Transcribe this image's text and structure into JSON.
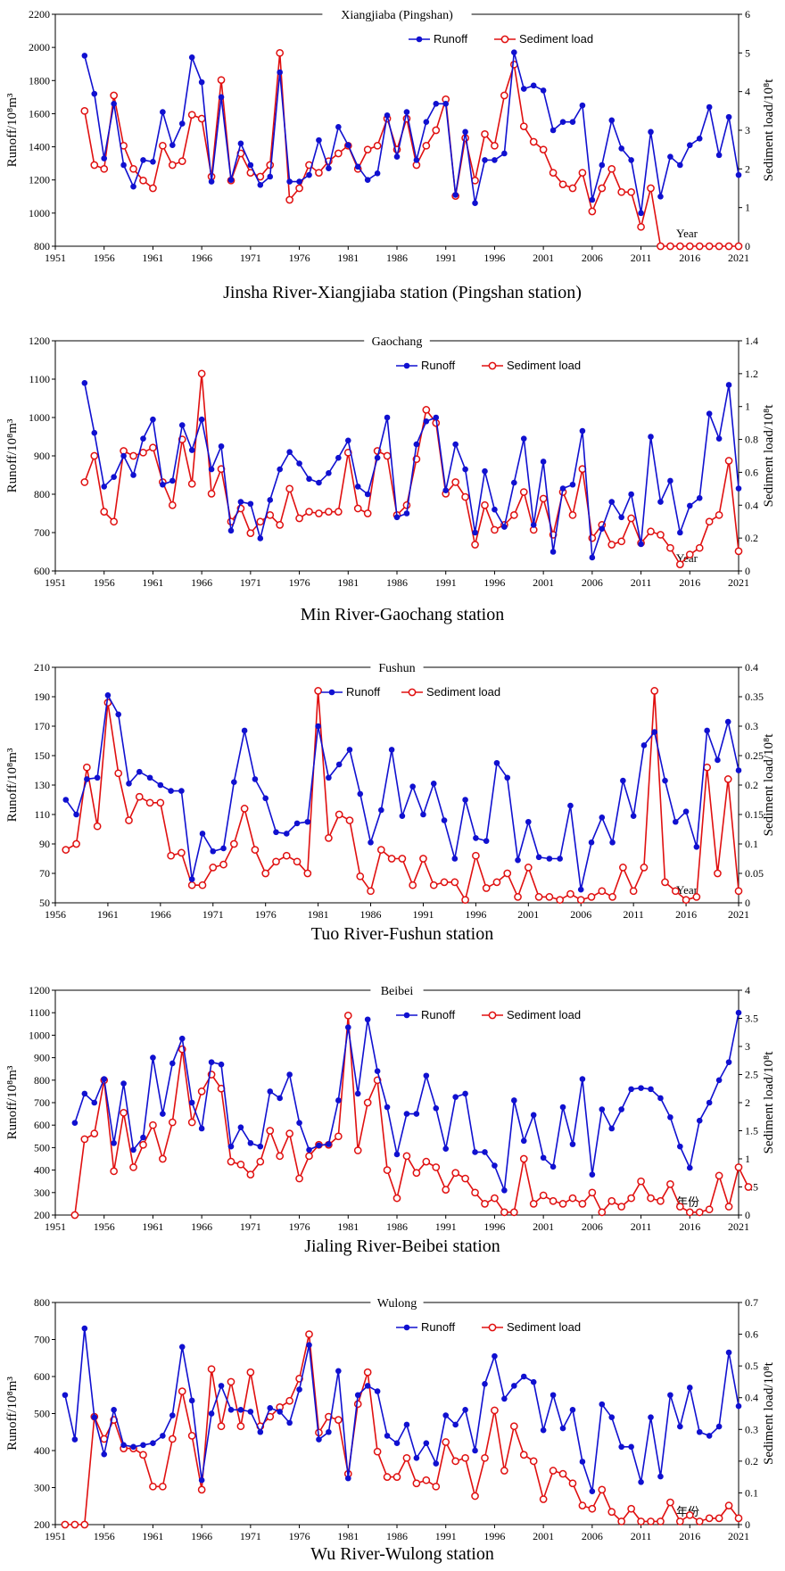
{
  "colors": {
    "runoff": "#1010d0",
    "sediment": "#e01010"
  },
  "chart_data": [
    {
      "type": "line",
      "title": "Xiangjiaba (Pingshan)",
      "caption": "Jinsha River-Xiangjiaba station (Pingshan station)",
      "ylabel": "Runoff/10⁸m³",
      "y2label": "Sediment load/10⁸t",
      "xnote": "Year",
      "xlim": [
        1951,
        2021
      ],
      "xticks": [
        "1951",
        "1956",
        "1961",
        "1966",
        "1971",
        "1976",
        "1981",
        "1986",
        "1991",
        "1996",
        "2001",
        "2006",
        "2011",
        "2016",
        "2021"
      ],
      "ylim": [
        800,
        2200
      ],
      "yticks": [
        "800",
        "1000",
        "1200",
        "1400",
        "1600",
        "1800",
        "2000",
        "2200"
      ],
      "y2lim": [
        0,
        6
      ],
      "y2ticks": [
        "0",
        "1",
        "2",
        "3",
        "4",
        "5",
        "6"
      ],
      "legend": [
        "Runoff",
        "Sediment load"
      ],
      "x_start": 1954,
      "series": [
        {
          "name": "Runoff",
          "axis": "left",
          "values": [
            1950,
            1720,
            1330,
            1660,
            1290,
            1160,
            1320,
            1310,
            1610,
            1410,
            1540,
            1940,
            1790,
            1190,
            1700,
            1200,
            1420,
            1290,
            1170,
            1220,
            1850,
            1190,
            1190,
            1230,
            1440,
            1270,
            1520,
            1410,
            1280,
            1200,
            1240,
            1590,
            1340,
            1610,
            1320,
            1550,
            1660,
            1660,
            1110,
            1490,
            1060,
            1320,
            1320,
            1360,
            1970,
            1750,
            1770,
            1740,
            1500,
            1550,
            1550,
            1650,
            1080,
            1290,
            1560,
            1390,
            1320,
            1000,
            1490,
            1100,
            1340,
            1290,
            1410,
            1450,
            1640,
            1350,
            1580,
            1230
          ]
        },
        {
          "name": "Sediment load",
          "axis": "right",
          "values": [
            3.5,
            2.1,
            2.0,
            3.9,
            2.6,
            2.0,
            1.7,
            1.5,
            2.6,
            2.1,
            2.2,
            3.4,
            3.3,
            1.8,
            4.3,
            1.7,
            2.4,
            1.9,
            1.8,
            2.1,
            5.0,
            1.2,
            1.5,
            2.1,
            1.9,
            2.2,
            2.4,
            2.6,
            2.0,
            2.5,
            2.6,
            3.3,
            2.5,
            3.3,
            2.1,
            2.6,
            3.0,
            3.8,
            1.3,
            2.8,
            1.7,
            2.9,
            2.6,
            3.9,
            4.7,
            3.1,
            2.7,
            2.5,
            1.9,
            1.6,
            1.5,
            1.9,
            0.9,
            1.5,
            2.0,
            1.4,
            1.4,
            0.5,
            1.5,
            0,
            0,
            0,
            0,
            0,
            0,
            0,
            0,
            0
          ]
        }
      ]
    },
    {
      "type": "line",
      "title": "Gaochang",
      "caption": "Min River-Gaochang station",
      "ylabel": "Runoff/10⁸m³",
      "y2label": "Sediment load/10⁸t",
      "xnote": "Year",
      "xlim": [
        1951,
        2021
      ],
      "xticks": [
        "1951",
        "1956",
        "1961",
        "1966",
        "1971",
        "1976",
        "1981",
        "1986",
        "1991",
        "1996",
        "2001",
        "2006",
        "2011",
        "2016",
        "2021"
      ],
      "ylim": [
        600,
        1200
      ],
      "yticks": [
        "600",
        "700",
        "800",
        "900",
        "1000",
        "1100",
        "1200"
      ],
      "y2lim": [
        0,
        1.4
      ],
      "y2ticks": [
        "0",
        "0.2",
        "0.4",
        "0.6",
        "0.8",
        "1",
        "1.2",
        "1.4"
      ],
      "legend": [
        "Runoff",
        "Sediment load"
      ],
      "x_start": 1954,
      "series": [
        {
          "name": "Runoff",
          "axis": "left",
          "values": [
            1090,
            960,
            820,
            845,
            900,
            850,
            945,
            995,
            825,
            835,
            980,
            915,
            995,
            865,
            925,
            705,
            780,
            775,
            685,
            785,
            865,
            910,
            880,
            840,
            830,
            855,
            895,
            940,
            820,
            800,
            895,
            1000,
            740,
            750,
            930,
            990,
            1000,
            810,
            930,
            865,
            700,
            860,
            760,
            715,
            830,
            945,
            720,
            885,
            650,
            815,
            825,
            965,
            635,
            710,
            780,
            740,
            800,
            670,
            950,
            780,
            835,
            700,
            770,
            790,
            1010,
            945,
            1085,
            815
          ]
        },
        {
          "name": "Sediment load",
          "axis": "right",
          "values": [
            0.54,
            0.7,
            0.36,
            0.3,
            0.73,
            0.7,
            0.72,
            0.75,
            0.54,
            0.4,
            0.8,
            0.53,
            1.2,
            0.47,
            0.62,
            0.3,
            0.38,
            0.23,
            0.3,
            0.34,
            0.28,
            0.5,
            0.32,
            0.36,
            0.35,
            0.36,
            0.36,
            0.72,
            0.38,
            0.35,
            0.73,
            0.7,
            0.34,
            0.4,
            0.68,
            0.98,
            0.9,
            0.47,
            0.54,
            0.45,
            0.16,
            0.4,
            0.25,
            0.28,
            0.34,
            0.48,
            0.25,
            0.44,
            0.22,
            0.48,
            0.34,
            0.62,
            0.2,
            0.28,
            0.16,
            0.18,
            0.32,
            0.17,
            0.24,
            0.22,
            0.14,
            0.04,
            0.1,
            0.14,
            0.3,
            0.34,
            0.67,
            0.12
          ]
        }
      ]
    },
    {
      "type": "line",
      "title": "Fushun",
      "caption": "Tuo River-Fushun station",
      "ylabel": "Runoff/10⁸m³",
      "y2label": "Sediment load/10⁸t",
      "xnote": "Year",
      "xlim": [
        1956,
        2021
      ],
      "xticks": [
        "1956",
        "1961",
        "1966",
        "1971",
        "1976",
        "1981",
        "1986",
        "1991",
        "1996",
        "2001",
        "2006",
        "2011",
        "2016",
        "2021"
      ],
      "ylim": [
        50,
        210
      ],
      "yticks": [
        "50",
        "70",
        "90",
        "110",
        "130",
        "150",
        "170",
        "190",
        "210"
      ],
      "y2lim": [
        0,
        0.4
      ],
      "y2ticks": [
        "0",
        "0.05",
        "0.1",
        "0.15",
        "0.2",
        "0.25",
        "0.3",
        "0.35",
        "0.4"
      ],
      "legend": [
        "Runoff",
        "Sediment load"
      ],
      "x_start": 1957,
      "series": [
        {
          "name": "Runoff",
          "axis": "left",
          "values": [
            120,
            110,
            134,
            135,
            191,
            178,
            131,
            139,
            135,
            130,
            126,
            126,
            66,
            97,
            85,
            87,
            132,
            167,
            134,
            121,
            98,
            97,
            104,
            105,
            170,
            135,
            144,
            154,
            124,
            91,
            113,
            154,
            109,
            129,
            110,
            131,
            106,
            80,
            120,
            94,
            92,
            145,
            135,
            79,
            105,
            81,
            80,
            80,
            116,
            59,
            91,
            108,
            91,
            133,
            109,
            157,
            166,
            133,
            105,
            112,
            88,
            167,
            147,
            173,
            140
          ]
        },
        {
          "name": "Sediment load",
          "axis": "right",
          "values": [
            0.09,
            0.1,
            0.23,
            0.13,
            0.34,
            0.22,
            0.14,
            0.18,
            0.17,
            0.17,
            0.08,
            0.085,
            0.03,
            0.03,
            0.06,
            0.065,
            0.1,
            0.16,
            0.09,
            0.05,
            0.07,
            0.08,
            0.07,
            0.05,
            0.36,
            0.11,
            0.15,
            0.14,
            0.045,
            0.02,
            0.09,
            0.075,
            0.075,
            0.03,
            0.075,
            0.03,
            0.035,
            0.035,
            0.005,
            0.08,
            0.025,
            0.035,
            0.05,
            0.01,
            0.06,
            0.01,
            0.01,
            0.005,
            0.015,
            0.005,
            0.01,
            0.02,
            0.01,
            0.06,
            0.02,
            0.06,
            0.36,
            0.035,
            0.02,
            0.005,
            0.01,
            0.23,
            0.05,
            0.21,
            0.02
          ]
        }
      ]
    },
    {
      "type": "line",
      "title": "Beibei",
      "caption": "Jialing River-Beibei station",
      "ylabel": "Runoff/10⁸m³",
      "y2label": "Sediment load/10⁸t",
      "xnote": "年份",
      "xlim": [
        1951,
        2021
      ],
      "xticks": [
        "1951",
        "1956",
        "1961",
        "1966",
        "1971",
        "1976",
        "1981",
        "1986",
        "1991",
        "1996",
        "2001",
        "2006",
        "2011",
        "2016",
        "2021"
      ],
      "ylim": [
        200,
        1200
      ],
      "yticks": [
        "200",
        "300",
        "400",
        "500",
        "600",
        "700",
        "800",
        "900",
        "1000",
        "1100",
        "1200"
      ],
      "y2lim": [
        0,
        4
      ],
      "y2ticks": [
        "0",
        "0.5",
        "1",
        "1.5",
        "2",
        "2.5",
        "3",
        "3.5",
        "4"
      ],
      "legend": [
        "Runoff",
        "Sediment load"
      ],
      "x_start": 1953,
      "series": [
        {
          "name": "Runoff",
          "axis": "left",
          "values": [
            610,
            740,
            700,
            805,
            520,
            785,
            490,
            545,
            900,
            650,
            875,
            985,
            700,
            585,
            880,
            870,
            505,
            590,
            520,
            505,
            750,
            720,
            825,
            610,
            490,
            510,
            515,
            710,
            1035,
            740,
            1070,
            840,
            680,
            470,
            650,
            650,
            820,
            675,
            495,
            725,
            740,
            480,
            480,
            420,
            310,
            710,
            530,
            645,
            455,
            415,
            680,
            515,
            805,
            380,
            670,
            585,
            670,
            760,
            765,
            760,
            720,
            635,
            505,
            410,
            620,
            700,
            800,
            880,
            1100
          ]
        },
        {
          "name": "Sediment load",
          "axis": "right",
          "values": [
            0,
            1.35,
            1.45,
            2.4,
            0.78,
            1.82,
            0.85,
            1.25,
            1.6,
            1.0,
            1.65,
            2.95,
            1.65,
            2.2,
            2.5,
            2.25,
            0.95,
            0.9,
            0.72,
            0.95,
            1.5,
            1.05,
            1.45,
            0.65,
            1.05,
            1.25,
            1.25,
            1.4,
            3.55,
            1.15,
            2.0,
            2.4,
            0.8,
            0.3,
            1.05,
            0.75,
            0.95,
            0.85,
            0.45,
            0.75,
            0.65,
            0.4,
            0.2,
            0.3,
            0.05,
            0.05,
            1.0,
            0.2,
            0.35,
            0.25,
            0.2,
            0.3,
            0.2,
            0.4,
            0.05,
            0.25,
            0.15,
            0.3,
            0.6,
            0.3,
            0.25,
            0.55,
            0.15,
            0.05,
            0.05,
            0.1,
            0.7,
            0.15,
            0.85,
            0.5
          ]
        }
      ]
    },
    {
      "type": "line",
      "title": "Wulong",
      "caption": "Wu River-Wulong station",
      "ylabel": "Runoff/10⁸m³",
      "y2label": "Sediment load/10⁸t",
      "xnote": "年份",
      "xlim": [
        1951,
        2021
      ],
      "xticks": [
        "1951",
        "1956",
        "1961",
        "1966",
        "1971",
        "1976",
        "1981",
        "1986",
        "1991",
        "1996",
        "2001",
        "2006",
        "2011",
        "2016",
        "2021"
      ],
      "ylim": [
        200,
        800
      ],
      "yticks": [
        "200",
        "300",
        "400",
        "500",
        "600",
        "700",
        "800"
      ],
      "y2lim": [
        0,
        0.7
      ],
      "y2ticks": [
        "0",
        "0.1",
        "0.2",
        "0.3",
        "0.4",
        "0.5",
        "0.6",
        "0.7"
      ],
      "legend": [
        "Runoff",
        "Sediment load"
      ],
      "x_start": 1952,
      "series": [
        {
          "name": "Runoff",
          "axis": "left",
          "values": [
            550,
            430,
            730,
            490,
            390,
            510,
            415,
            410,
            415,
            420,
            440,
            495,
            680,
            535,
            320,
            500,
            575,
            510,
            510,
            505,
            450,
            515,
            505,
            475,
            565,
            685,
            430,
            450,
            615,
            325,
            550,
            575,
            560,
            440,
            420,
            470,
            380,
            420,
            365,
            495,
            470,
            510,
            400,
            580,
            655,
            540,
            575,
            600,
            585,
            455,
            550,
            460,
            510,
            370,
            290,
            525,
            490,
            410,
            410,
            315,
            490,
            330,
            550,
            465,
            570,
            450,
            440,
            465,
            665,
            520
          ]
        },
        {
          "name": "Sediment load",
          "axis": "right",
          "values": [
            0,
            0,
            0,
            0.34,
            0.27,
            0.33,
            0.24,
            0.24,
            0.22,
            0.12,
            0.12,
            0.27,
            0.42,
            0.28,
            0.11,
            0.49,
            0.31,
            0.45,
            0.31,
            0.48,
            0.31,
            0.34,
            0.37,
            0.39,
            0.46,
            0.6,
            0.29,
            0.34,
            0.33,
            0.16,
            0.38,
            0.48,
            0.23,
            0.15,
            0.15,
            0.21,
            0.13,
            0.14,
            0.12,
            0.26,
            0.2,
            0.21,
            0.09,
            0.21,
            0.36,
            0.17,
            0.31,
            0.22,
            0.2,
            0.08,
            0.17,
            0.16,
            0.13,
            0.06,
            0.05,
            0.11,
            0.04,
            0.01,
            0.05,
            0.01,
            0.01,
            0.01,
            0.07,
            0.01,
            0.03,
            0.01,
            0.02,
            0.02,
            0.06,
            0.02
          ]
        }
      ]
    }
  ]
}
